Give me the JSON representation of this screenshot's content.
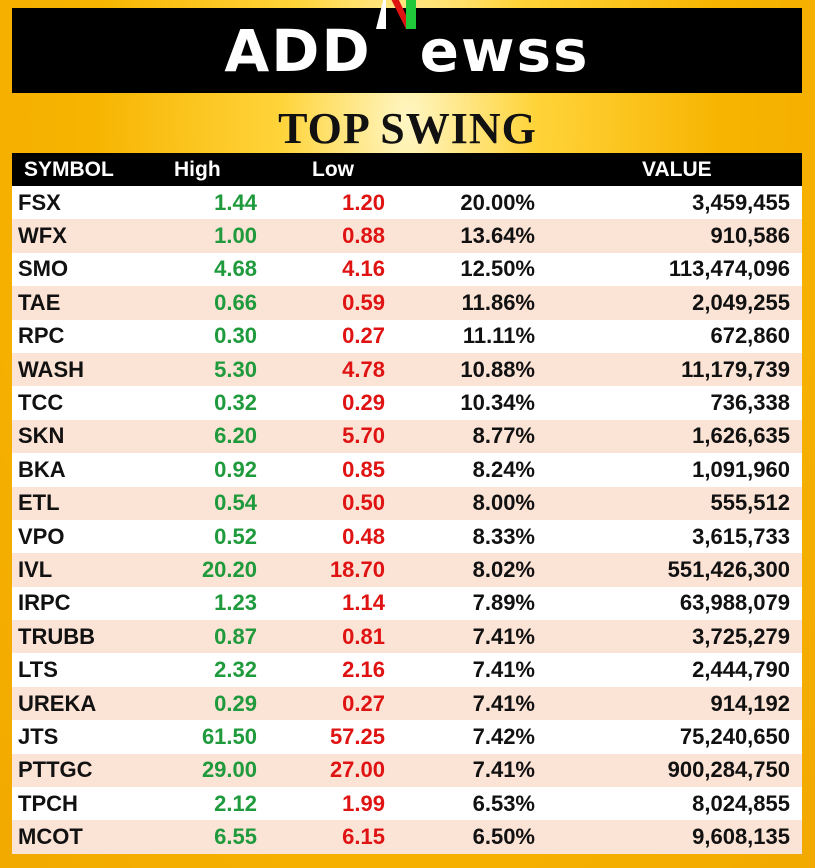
{
  "brand": {
    "left": "ADD",
    "right": "ewss"
  },
  "title": "TOP SWING",
  "headers": {
    "symbol": "SYMBOL",
    "high": "High",
    "low": "Low",
    "pct": "",
    "value": "VALUE"
  },
  "colors": {
    "high": "#1f9a3c",
    "low": "#e01313",
    "accent": "#f7b800"
  },
  "rows": [
    {
      "symbol": "FSX",
      "high": "1.44",
      "low": "1.20",
      "pct": "20.00%",
      "value": "3,459,455"
    },
    {
      "symbol": "WFX",
      "high": "1.00",
      "low": "0.88",
      "pct": "13.64%",
      "value": "910,586"
    },
    {
      "symbol": "SMO",
      "high": "4.68",
      "low": "4.16",
      "pct": "12.50%",
      "value": "113,474,096"
    },
    {
      "symbol": "TAE",
      "high": "0.66",
      "low": "0.59",
      "pct": "11.86%",
      "value": "2,049,255"
    },
    {
      "symbol": "RPC",
      "high": "0.30",
      "low": "0.27",
      "pct": "11.11%",
      "value": "672,860"
    },
    {
      "symbol": "WASH",
      "high": "5.30",
      "low": "4.78",
      "pct": "10.88%",
      "value": "11,179,739"
    },
    {
      "symbol": "TCC",
      "high": "0.32",
      "low": "0.29",
      "pct": "10.34%",
      "value": "736,338"
    },
    {
      "symbol": "SKN",
      "high": "6.20",
      "low": "5.70",
      "pct": "8.77%",
      "value": "1,626,635"
    },
    {
      "symbol": "BKA",
      "high": "0.92",
      "low": "0.85",
      "pct": "8.24%",
      "value": "1,091,960"
    },
    {
      "symbol": "ETL",
      "high": "0.54",
      "low": "0.50",
      "pct": "8.00%",
      "value": "555,512"
    },
    {
      "symbol": "VPO",
      "high": "0.52",
      "low": "0.48",
      "pct": "8.33%",
      "value": "3,615,733"
    },
    {
      "symbol": "IVL",
      "high": "20.20",
      "low": "18.70",
      "pct": "8.02%",
      "value": "551,426,300"
    },
    {
      "symbol": "IRPC",
      "high": "1.23",
      "low": "1.14",
      "pct": "7.89%",
      "value": "63,988,079"
    },
    {
      "symbol": "TRUBB",
      "high": "0.87",
      "low": "0.81",
      "pct": "7.41%",
      "value": "3,725,279"
    },
    {
      "symbol": "LTS",
      "high": "2.32",
      "low": "2.16",
      "pct": "7.41%",
      "value": "2,444,790"
    },
    {
      "symbol": "UREKA",
      "high": "0.29",
      "low": "0.27",
      "pct": "7.41%",
      "value": "914,192"
    },
    {
      "symbol": "JTS",
      "high": "61.50",
      "low": "57.25",
      "pct": "7.42%",
      "value": "75,240,650"
    },
    {
      "symbol": "PTTGC",
      "high": "29.00",
      "low": "27.00",
      "pct": "7.41%",
      "value": "900,284,750"
    },
    {
      "symbol": "TPCH",
      "high": "2.12",
      "low": "1.99",
      "pct": "6.53%",
      "value": "8,024,855"
    },
    {
      "symbol": "MCOT",
      "high": "6.55",
      "low": "6.15",
      "pct": "6.50%",
      "value": "9,608,135"
    }
  ]
}
